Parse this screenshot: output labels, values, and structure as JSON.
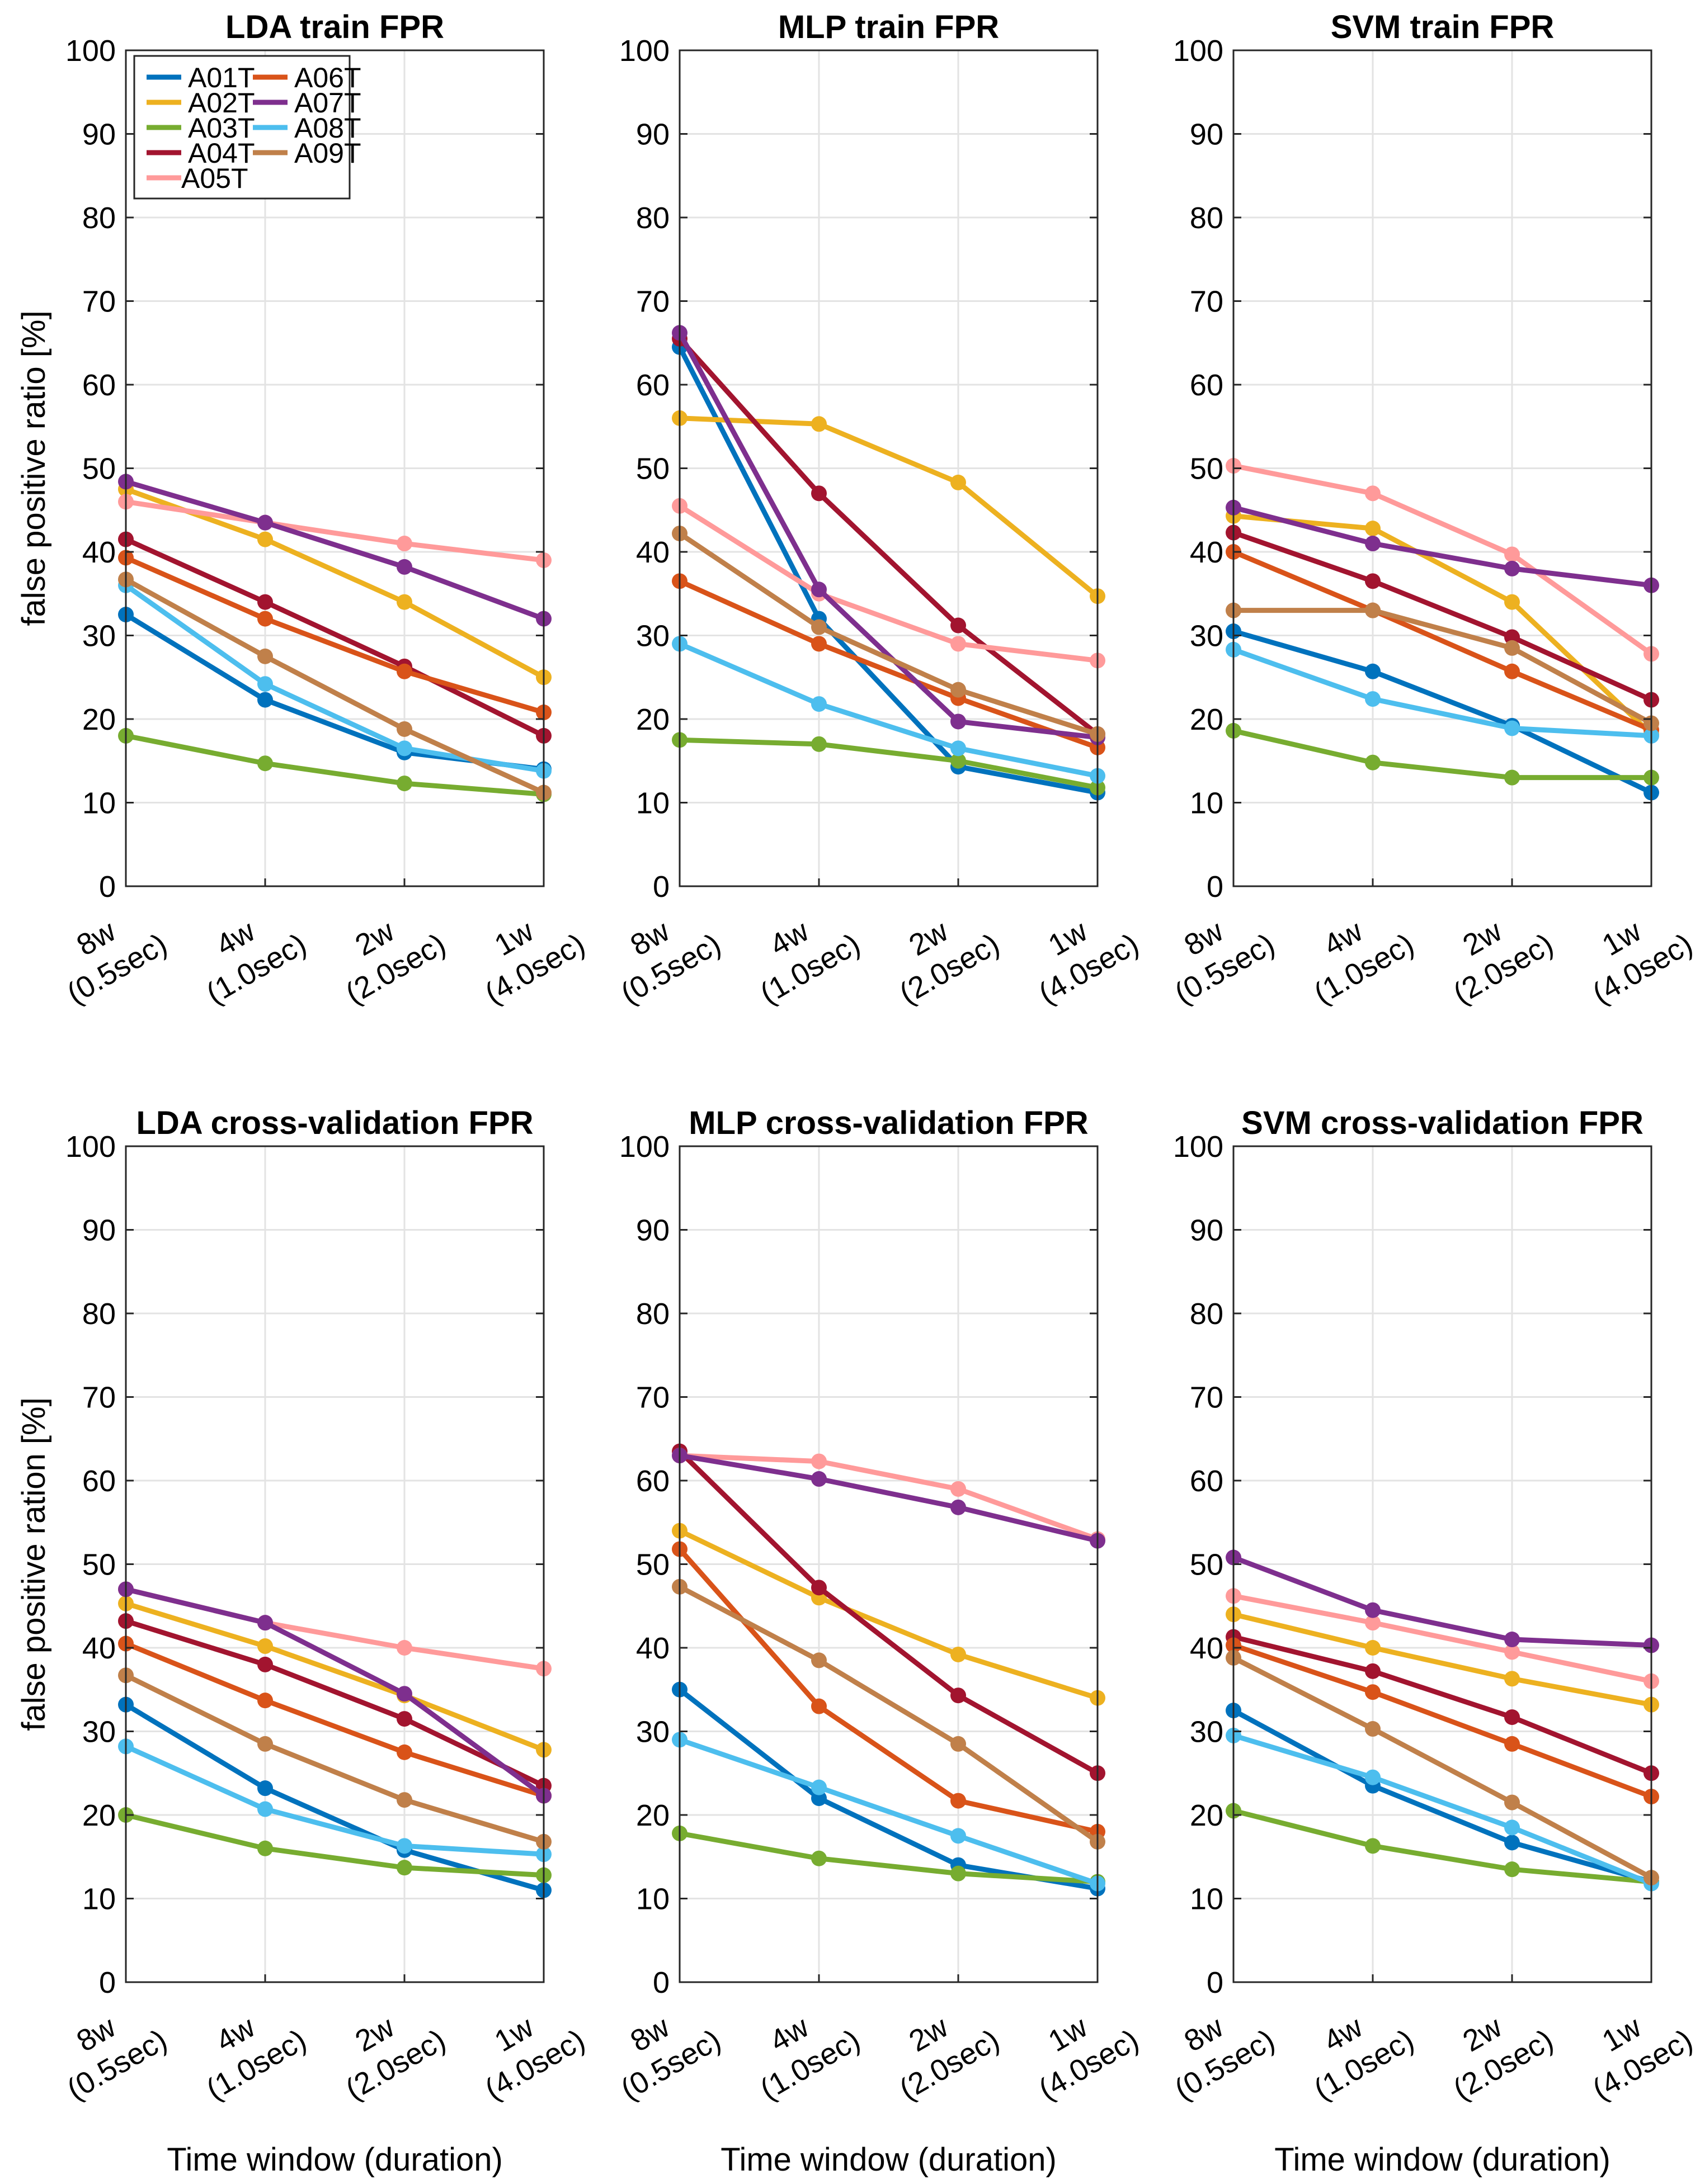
{
  "series_names": [
    "A01T",
    "A02T",
    "A03T",
    "A04T",
    "A05T",
    "A06T",
    "A07T",
    "A08T",
    "A09T"
  ],
  "series_colors": {
    "A01T": "#0072BD",
    "A02T": "#EDB120",
    "A03T": "#77AC30",
    "A04T": "#A2142F",
    "A05T": "#FF9A9A",
    "A06T": "#D95319",
    "A07T": "#7E2F8E",
    "A08T": "#4DBEEE",
    "A09T": "#C0804A"
  },
  "common_xlabel": "Time window (duration)",
  "chart_data": [
    {
      "type": "line",
      "title": "LDA train FPR",
      "ylabel": "false positive ratio [%]",
      "xlabel": "",
      "ylim": [
        0,
        100
      ],
      "yticks": [
        0,
        10,
        20,
        30,
        40,
        50,
        60,
        70,
        80,
        90,
        100
      ],
      "grid": true,
      "legend": "top-left",
      "categories": [
        "8w (0.5sec)",
        "4w (1.0sec)",
        "2w (2.0sec)",
        "1w (4.0sec)"
      ],
      "tick_labels": [
        {
          "line1": "8w",
          "line2": "(0.5sec)"
        },
        {
          "line1": "4w",
          "line2": "(1.0sec)"
        },
        {
          "line1": "2w",
          "line2": "(2.0sec)"
        },
        {
          "line1": "1w",
          "line2": "(4.0sec)"
        }
      ],
      "series": [
        {
          "name": "A01T",
          "values": [
            32.5,
            22.3,
            16.0,
            14.0
          ]
        },
        {
          "name": "A02T",
          "values": [
            47.5,
            41.5,
            34.0,
            25.0
          ]
        },
        {
          "name": "A03T",
          "values": [
            18.0,
            14.7,
            12.3,
            11.0
          ]
        },
        {
          "name": "A04T",
          "values": [
            41.5,
            34.0,
            26.3,
            18.0
          ]
        },
        {
          "name": "A05T",
          "values": [
            46.0,
            43.5,
            41.0,
            39.0
          ]
        },
        {
          "name": "A06T",
          "values": [
            39.3,
            32.0,
            25.7,
            20.8
          ]
        },
        {
          "name": "A07T",
          "values": [
            48.4,
            43.5,
            38.2,
            32.0
          ]
        },
        {
          "name": "A08T",
          "values": [
            36.0,
            24.2,
            16.5,
            13.8
          ]
        },
        {
          "name": "A09T",
          "values": [
            36.7,
            27.5,
            18.8,
            11.2
          ]
        }
      ]
    },
    {
      "type": "line",
      "title": "MLP train FPR",
      "ylabel": "",
      "xlabel": "",
      "ylim": [
        0,
        100
      ],
      "yticks": [
        0,
        10,
        20,
        30,
        40,
        50,
        60,
        70,
        80,
        90,
        100
      ],
      "grid": true,
      "categories": [
        "8w (0.5sec)",
        "4w (1.0sec)",
        "2w (2.0sec)",
        "1w (4.0sec)"
      ],
      "tick_labels": [
        {
          "line1": "8w",
          "line2": "(0.5sec)"
        },
        {
          "line1": "4w",
          "line2": "(1.0sec)"
        },
        {
          "line1": "2w",
          "line2": "(2.0sec)"
        },
        {
          "line1": "1w",
          "line2": "(4.0sec)"
        }
      ],
      "series": [
        {
          "name": "A01T",
          "values": [
            64.5,
            32.0,
            14.3,
            11.2
          ]
        },
        {
          "name": "A02T",
          "values": [
            56.0,
            55.3,
            48.3,
            34.7
          ]
        },
        {
          "name": "A03T",
          "values": [
            17.5,
            17.0,
            15.0,
            11.8
          ]
        },
        {
          "name": "A04T",
          "values": [
            65.5,
            47.0,
            31.2,
            18.2
          ]
        },
        {
          "name": "A05T",
          "values": [
            45.5,
            35.0,
            29.0,
            27.0
          ]
        },
        {
          "name": "A06T",
          "values": [
            36.5,
            29.0,
            22.5,
            16.6
          ]
        },
        {
          "name": "A07T",
          "values": [
            66.2,
            35.5,
            19.7,
            17.8
          ]
        },
        {
          "name": "A08T",
          "values": [
            29.0,
            21.8,
            16.5,
            13.2
          ]
        },
        {
          "name": "A09T",
          "values": [
            42.2,
            31.0,
            23.5,
            18.2
          ]
        }
      ]
    },
    {
      "type": "line",
      "title": "SVM  train FPR",
      "ylabel": "",
      "xlabel": "",
      "ylim": [
        0,
        100
      ],
      "yticks": [
        0,
        10,
        20,
        30,
        40,
        50,
        60,
        70,
        80,
        90,
        100
      ],
      "grid": true,
      "categories": [
        "8w (0.5sec)",
        "4w (1.0sec)",
        "2w (2.0sec)",
        "1w (4.0sec)"
      ],
      "tick_labels": [
        {
          "line1": "8w",
          "line2": "(0.5sec)"
        },
        {
          "line1": "4w",
          "line2": "(1.0sec)"
        },
        {
          "line1": "2w",
          "line2": "(2.0sec)"
        },
        {
          "line1": "1w",
          "line2": "(4.0sec)"
        }
      ],
      "series": [
        {
          "name": "A01T",
          "values": [
            30.5,
            25.7,
            19.2,
            11.2
          ]
        },
        {
          "name": "A02T",
          "values": [
            44.3,
            42.8,
            34.0,
            18.2
          ]
        },
        {
          "name": "A03T",
          "values": [
            18.6,
            14.8,
            13.0,
            13.0
          ]
        },
        {
          "name": "A04T",
          "values": [
            42.3,
            36.5,
            29.8,
            22.3
          ]
        },
        {
          "name": "A05T",
          "values": [
            50.3,
            47.0,
            39.7,
            27.8
          ]
        },
        {
          "name": "A06T",
          "values": [
            40.0,
            33.0,
            25.7,
            18.7
          ]
        },
        {
          "name": "A07T",
          "values": [
            45.3,
            41.0,
            38.0,
            36.0
          ]
        },
        {
          "name": "A08T",
          "values": [
            28.3,
            22.4,
            18.9,
            18.0
          ]
        },
        {
          "name": "A09T",
          "values": [
            33.0,
            33.0,
            28.5,
            19.5
          ]
        }
      ]
    },
    {
      "type": "line",
      "title": "LDA cross-validation FPR",
      "ylabel": "false positive ration [%]",
      "xlabel": "Time window (duration)",
      "ylim": [
        0,
        100
      ],
      "yticks": [
        0,
        10,
        20,
        30,
        40,
        50,
        60,
        70,
        80,
        90,
        100
      ],
      "grid": true,
      "categories": [
        "8w (0.5sec)",
        "4w (1.0sec)",
        "2w (2.0sec)",
        "1w (4.0sec)"
      ],
      "tick_labels": [
        {
          "line1": "8w",
          "line2": "(0.5sec)"
        },
        {
          "line1": "4w",
          "line2": "(1.0sec)"
        },
        {
          "line1": "2w",
          "line2": "(2.0sec)"
        },
        {
          "line1": "1w",
          "line2": "(4.0sec)"
        }
      ],
      "series": [
        {
          "name": "A01T",
          "values": [
            33.2,
            23.2,
            15.8,
            11.0
          ]
        },
        {
          "name": "A02T",
          "values": [
            45.3,
            40.2,
            34.3,
            27.8
          ]
        },
        {
          "name": "A03T",
          "values": [
            20.0,
            16.0,
            13.7,
            12.8
          ]
        },
        {
          "name": "A04T",
          "values": [
            43.2,
            38.0,
            31.5,
            23.5
          ]
        },
        {
          "name": "A05T",
          "values": [
            47.0,
            43.0,
            40.0,
            37.5
          ]
        },
        {
          "name": "A06T",
          "values": [
            40.5,
            33.7,
            27.5,
            22.3
          ]
        },
        {
          "name": "A07T",
          "values": [
            47.0,
            43.0,
            34.5,
            22.3
          ]
        },
        {
          "name": "A08T",
          "values": [
            28.2,
            20.7,
            16.3,
            15.3
          ]
        },
        {
          "name": "A09T",
          "values": [
            36.7,
            28.5,
            21.8,
            16.8
          ]
        }
      ]
    },
    {
      "type": "line",
      "title": "MLP cross-validation FPR",
      "ylabel": "",
      "xlabel": "Time window (duration)",
      "ylim": [
        0,
        100
      ],
      "yticks": [
        0,
        10,
        20,
        30,
        40,
        50,
        60,
        70,
        80,
        90,
        100
      ],
      "grid": true,
      "categories": [
        "8w (0.5sec)",
        "4w (1.0sec)",
        "2w (2.0sec)",
        "1w (4.0sec)"
      ],
      "tick_labels": [
        {
          "line1": "8w",
          "line2": "(0.5sec)"
        },
        {
          "line1": "4w",
          "line2": "(1.0sec)"
        },
        {
          "line1": "2w",
          "line2": "(2.0sec)"
        },
        {
          "line1": "1w",
          "line2": "(4.0sec)"
        }
      ],
      "series": [
        {
          "name": "A01T",
          "values": [
            35.0,
            22.0,
            14.0,
            11.2
          ]
        },
        {
          "name": "A02T",
          "values": [
            54.0,
            46.0,
            39.2,
            34.0
          ]
        },
        {
          "name": "A03T",
          "values": [
            17.8,
            14.8,
            13.0,
            12.0
          ]
        },
        {
          "name": "A04T",
          "values": [
            63.5,
            47.2,
            34.3,
            25.0
          ]
        },
        {
          "name": "A05T",
          "values": [
            63.0,
            62.3,
            59.0,
            53.0
          ]
        },
        {
          "name": "A06T",
          "values": [
            51.8,
            33.0,
            21.7,
            18.0
          ]
        },
        {
          "name": "A07T",
          "values": [
            63.0,
            60.2,
            56.8,
            52.8
          ]
        },
        {
          "name": "A08T",
          "values": [
            29.0,
            23.3,
            17.5,
            11.8
          ]
        },
        {
          "name": "A09T",
          "values": [
            47.3,
            38.5,
            28.5,
            16.8
          ]
        }
      ]
    },
    {
      "type": "line",
      "title": "SVM cross-validation FPR",
      "ylabel": "",
      "xlabel": "Time window (duration)",
      "ylim": [
        0,
        100
      ],
      "yticks": [
        0,
        10,
        20,
        30,
        40,
        50,
        60,
        70,
        80,
        90,
        100
      ],
      "grid": true,
      "categories": [
        "8w (0.5sec)",
        "4w (1.0sec)",
        "2w (2.0sec)",
        "1w (4.0sec)"
      ],
      "tick_labels": [
        {
          "line1": "8w",
          "line2": "(0.5sec)"
        },
        {
          "line1": "4w",
          "line2": "(1.0sec)"
        },
        {
          "line1": "2w",
          "line2": "(2.0sec)"
        },
        {
          "line1": "1w",
          "line2": "(4.0sec)"
        }
      ],
      "series": [
        {
          "name": "A01T",
          "values": [
            32.5,
            23.5,
            16.7,
            12.0
          ]
        },
        {
          "name": "A02T",
          "values": [
            44.0,
            40.0,
            36.3,
            33.2
          ]
        },
        {
          "name": "A03T",
          "values": [
            20.5,
            16.3,
            13.5,
            12.0
          ]
        },
        {
          "name": "A04T",
          "values": [
            41.3,
            37.2,
            31.7,
            25.0
          ]
        },
        {
          "name": "A05T",
          "values": [
            46.2,
            43.0,
            39.5,
            36.0
          ]
        },
        {
          "name": "A06T",
          "values": [
            40.3,
            34.7,
            28.5,
            22.2
          ]
        },
        {
          "name": "A07T",
          "values": [
            50.8,
            44.5,
            41.0,
            40.3
          ]
        },
        {
          "name": "A08T",
          "values": [
            29.5,
            24.5,
            18.5,
            11.8
          ]
        },
        {
          "name": "A09T",
          "values": [
            38.8,
            30.3,
            21.5,
            12.5
          ]
        }
      ]
    }
  ]
}
